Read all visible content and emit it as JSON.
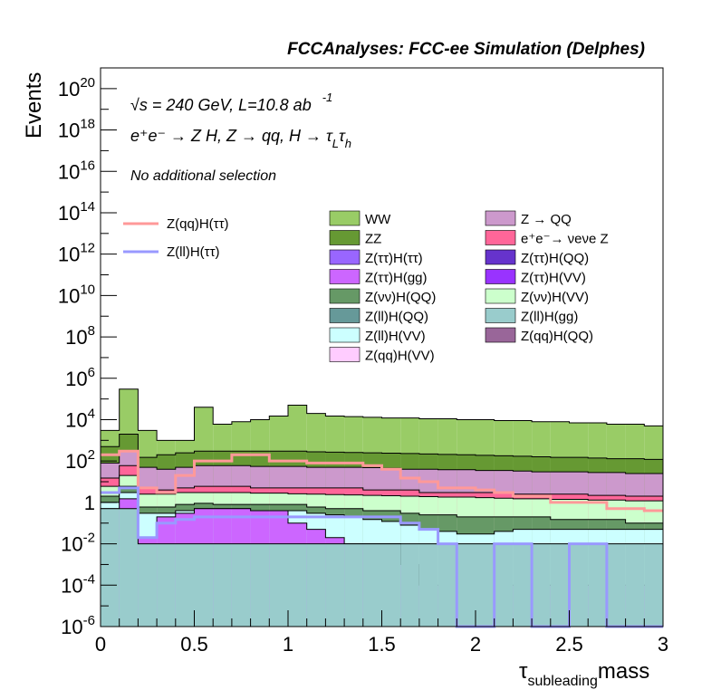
{
  "chart_data": {
    "type": "stacked-histogram",
    "title": "FCCAnalyses: FCC-ee Simulation (Delphes)",
    "xlabel": "τ",
    "xlabel_sub": "subleading",
    "xlabel_suffix": "mass",
    "ylabel": "Events",
    "xlim": [
      0,
      3
    ],
    "ylim": [
      1e-06,
      1e+21
    ],
    "yscale": "log",
    "x_ticks": [
      "0",
      "0.5",
      "1",
      "1.5",
      "2",
      "2.5",
      "3"
    ],
    "y_ticks": [
      {
        "base": "10",
        "exp": "-6"
      },
      {
        "base": "10",
        "exp": "-4"
      },
      {
        "base": "10",
        "exp": "-2"
      },
      {
        "base": "1",
        "exp": ""
      },
      {
        "base": "10",
        "exp": "2"
      },
      {
        "base": "10",
        "exp": "4"
      },
      {
        "base": "10",
        "exp": "6"
      },
      {
        "base": "10",
        "exp": "8"
      },
      {
        "base": "10",
        "exp": "10"
      },
      {
        "base": "10",
        "exp": "12"
      },
      {
        "base": "10",
        "exp": "14"
      },
      {
        "base": "10",
        "exp": "16"
      },
      {
        "base": "10",
        "exp": "18"
      },
      {
        "base": "10",
        "exp": "20"
      }
    ],
    "annotations": {
      "energy_sqrt": "√s",
      "energy_rest": " = 240 GeV, L=10.8 ab",
      "energy_exp": "-1",
      "process": "e⁺e⁻ → Z H, Z → qq, H → τ",
      "process_sub1": "L",
      "process_tau2": "τ",
      "process_sub2": "h",
      "selection": "No additional selection"
    },
    "bins": [
      0.0,
      0.1,
      0.2,
      0.3,
      0.4,
      0.5,
      0.6,
      0.7,
      0.8,
      0.9,
      1.0,
      1.1,
      1.2,
      1.3,
      1.4,
      1.5,
      1.6,
      1.7,
      1.8,
      1.9,
      2.0,
      2.1,
      2.2,
      2.3,
      2.4,
      2.5,
      2.6,
      2.7,
      2.8,
      2.9,
      3.0
    ],
    "stack_totals": [
      3000,
      300000,
      3000,
      1000,
      1000,
      40000,
      6000,
      8000,
      10000,
      15000,
      50000,
      20000,
      15000,
      14000,
      13000,
      12000,
      12000,
      11000,
      11000,
      10000,
      10000,
      9000,
      9000,
      8000,
      8000,
      7000,
      7000,
      6000,
      6000,
      5000
    ],
    "bands": [
      {
        "name": "WW",
        "color": "#99cc66",
        "top": [
          3000,
          300000,
          3000,
          1000,
          1000,
          40000,
          6000,
          8000,
          10000,
          15000,
          50000,
          20000,
          15000,
          14000,
          13000,
          12000,
          12000,
          11000,
          11000,
          10000,
          10000,
          9000,
          9000,
          8000,
          8000,
          7000,
          7000,
          6000,
          6000,
          5000
        ]
      },
      {
        "name": "ZZ",
        "color": "#669933",
        "top": [
          500,
          2000,
          150,
          200,
          250,
          300,
          300,
          300,
          300,
          300,
          300,
          280,
          270,
          260,
          250,
          240,
          230,
          220,
          210,
          200,
          190,
          180,
          170,
          160,
          150,
          150,
          140,
          130,
          130,
          120
        ]
      },
      {
        "name": "Z → QQ",
        "color": "#cc99cc",
        "top": [
          80,
          300,
          50,
          40,
          50,
          60,
          60,
          60,
          55,
          55,
          55,
          50,
          50,
          50,
          48,
          45,
          40,
          40,
          38,
          38,
          35,
          35,
          33,
          30,
          30,
          30,
          28,
          28,
          25,
          25
        ]
      },
      {
        "name": "e⁺e⁻ → νeνe Z",
        "color": "#ff6699",
        "top": [
          15,
          60,
          5,
          4,
          5,
          6,
          6,
          6,
          5,
          5,
          5,
          5,
          5,
          5,
          4,
          4,
          4,
          3,
          3,
          3,
          3,
          3,
          2.5,
          2.5,
          2.5,
          2.5,
          2.2,
          2.2,
          2,
          2
        ]
      },
      {
        "name": "Z(vv)H(VV)",
        "color": "#ccffcc",
        "top": [
          6,
          20,
          2.5,
          2.5,
          3,
          3,
          3,
          3,
          2.8,
          2.8,
          2.6,
          2.5,
          2.4,
          2.3,
          2.2,
          2.1,
          2,
          1.9,
          1.8,
          1.8,
          1.7,
          1.6,
          1.5,
          1.5,
          1.4,
          1.4,
          1.3,
          1.3,
          1.2,
          1.2
        ]
      },
      {
        "name": "Z(vv)H(QQ)",
        "color": "#669966",
        "top": [
          2,
          6,
          0.6,
          0.6,
          0.8,
          0.9,
          0.8,
          0.8,
          0.8,
          0.8,
          0.8,
          0.6,
          0.5,
          0.5,
          0.4,
          0.4,
          0.3,
          0.25,
          0.25,
          0.2,
          0.2,
          0.2,
          0.2,
          0.2,
          0.15,
          0.15,
          0.15,
          0.15,
          0.1,
          0.1
        ]
      },
      {
        "name": "Z(ll)H(VV)",
        "color": "#ccffff",
        "top": [
          1,
          3,
          0.3,
          0.3,
          0.4,
          0.5,
          0.5,
          0.5,
          0.4,
          0.4,
          0.4,
          0.3,
          0.25,
          0.2,
          0.15,
          0.12,
          0.08,
          0.05,
          0.04,
          0.03,
          0.03,
          0.04,
          0.05,
          0.05,
          0.05,
          0.05,
          0.05,
          0.05,
          0.05,
          0.05
        ]
      },
      {
        "name": "Z(ττ)H(gg)",
        "color": "#cc66ff",
        "top": [
          0.5,
          1.5,
          0.02,
          0.2,
          0.3,
          0.5,
          0.5,
          0.5,
          0.4,
          0.4,
          0.1,
          0.05,
          0.02,
          0.01,
          0.01,
          0.01,
          0.001,
          0.0001,
          0.0001,
          0.0001,
          0.0001,
          0.0001,
          0.0001,
          0.0001,
          0.0001,
          0.0001,
          0.0001,
          0.0001,
          0.0001,
          0.0001
        ]
      },
      {
        "name": "Z(ll)H(gg)",
        "color": "#99cccc",
        "top": [
          0.5,
          0.5,
          0.01,
          0.01,
          0.01,
          0.01,
          0.01,
          0.01,
          0.01,
          0.01,
          0.01,
          0.01,
          0.01,
          0.01,
          0.01,
          0.01,
          0.01,
          0.01,
          0.01,
          0.01,
          0.01,
          0.01,
          0.01,
          0.01,
          0.01,
          0.01,
          0.01,
          0.01,
          0.01,
          0.01
        ]
      }
    ],
    "line_series": [
      {
        "name": "Z(qq)H(ττ)",
        "color": "#ff9999",
        "values": [
          200,
          300,
          5,
          3,
          20,
          100,
          100,
          200,
          200,
          100,
          100,
          80,
          80,
          80,
          60,
          40,
          15,
          10,
          5,
          5,
          4,
          3,
          2,
          2,
          1,
          1,
          1,
          0.5,
          0.5,
          0.4
        ]
      },
      {
        "name": "Z(ll)H(ττ)",
        "color": "#9999ff",
        "values": [
          3,
          5,
          0.02,
          0.1,
          0.15,
          0.2,
          0.2,
          0.2,
          0.2,
          0.2,
          0.2,
          0.2,
          0.2,
          0.2,
          0.2,
          0.2,
          0.1,
          0.05,
          0.01,
          1e-06,
          1e-06,
          0.01,
          0.01,
          1e-06,
          1e-06,
          0.01,
          0.01,
          1e-06,
          1e-06,
          1e-06
        ]
      }
    ],
    "legend": {
      "lines": [
        {
          "name": "Z(qq)H(ττ)",
          "color": "#ff9999"
        },
        {
          "name": "Z(ll)H(ττ)",
          "color": "#9999ff"
        }
      ],
      "col1": [
        {
          "name": "WW",
          "color": "#99cc66"
        },
        {
          "name": "ZZ",
          "color": "#669933"
        },
        {
          "name": "Z(ττ)H(ττ)",
          "color": "#9966ff"
        },
        {
          "name": "Z(ττ)H(gg)",
          "color": "#cc66ff"
        },
        {
          "name": "Z(νν)H(QQ)",
          "color": "#669966"
        },
        {
          "name": "Z(ll)H(QQ)",
          "color": "#669999"
        },
        {
          "name": "Z(ll)H(VV)",
          "color": "#ccffff"
        },
        {
          "name": "Z(qq)H(VV)",
          "color": "#ffccff"
        }
      ],
      "col2": [
        {
          "name": "Z → QQ",
          "color": "#cc99cc"
        },
        {
          "name": "e⁺e⁻→ νeνe Z",
          "color": "#ff6699"
        },
        {
          "name": "Z(ττ)H(QQ)",
          "color": "#6633cc"
        },
        {
          "name": "Z(ττ)H(VV)",
          "color": "#9933ff"
        },
        {
          "name": "Z(νν)H(VV)",
          "color": "#ccffcc"
        },
        {
          "name": "Z(ll)H(gg)",
          "color": "#99cccc"
        },
        {
          "name": "Z(qq)H(QQ)",
          "color": "#996699"
        }
      ]
    },
    "grid": false,
    "legend_placement": "top-right"
  }
}
